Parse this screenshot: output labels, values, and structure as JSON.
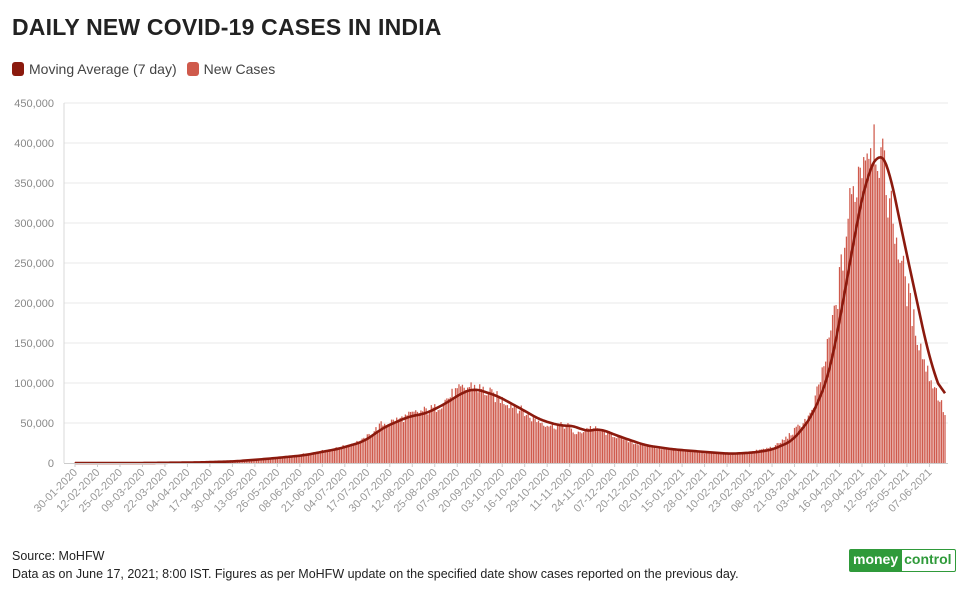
{
  "title": "DAILY NEW COVID-19 CASES IN INDIA",
  "legend": [
    {
      "label": "Moving Average (7 day)",
      "color": "#8b1a0e"
    },
    {
      "label": "New Cases",
      "color": "#cf5a4c"
    }
  ],
  "footer": {
    "source": "Source: MoHFW",
    "note": "Data as on June 17, 2021; 8:00 IST. Figures as per MoHFW update on the specified date show cases reported on the previous day."
  },
  "logo": {
    "part1": "money",
    "part2": "control"
  },
  "chart_data": {
    "type": "bar",
    "title": "DAILY NEW COVID-19 CASES IN INDIA",
    "xlabel": "",
    "ylabel": "",
    "ylim": [
      0,
      450000
    ],
    "yticks": [
      0,
      50000,
      100000,
      150000,
      200000,
      250000,
      300000,
      350000,
      400000,
      450000
    ],
    "ytick_labels": [
      "0",
      "50,000",
      "100,000",
      "150,000",
      "200,000",
      "250,000",
      "300,000",
      "350,000",
      "400,000",
      "450,000"
    ],
    "xtick_labels": [
      "30-01-2020",
      "12-02-2020",
      "25-02-2020",
      "09-03-2020",
      "22-03-2020",
      "04-04-2020",
      "17-04-2020",
      "30-04-2020",
      "13-05-2020",
      "26-05-2020",
      "08-06-2020",
      "21-06-2020",
      "04-07-2020",
      "17-07-2020",
      "30-07-2020",
      "12-08-2020",
      "25-08-2020",
      "07-09-2020",
      "20-09-2020",
      "03-10-2020",
      "16-10-2020",
      "29-10-2020",
      "11-11-2020",
      "24-11-2020",
      "07-12-2020",
      "20-12-2020",
      "02-01-2021",
      "15-01-2021",
      "28-01-2021",
      "10-02-2021",
      "23-02-2021",
      "08-03-2021",
      "21-03-2021",
      "03-04-2021",
      "16-04-2021",
      "29-04-2021",
      "12-05-2021",
      "25-05-2021",
      "07-06-2021"
    ],
    "date_range": [
      "2020-01-30",
      "2021-06-16"
    ],
    "grid": true,
    "legend_position": "top-left",
    "series": [
      {
        "name": "New Cases",
        "type": "bar",
        "color": "#cf5a4c",
        "keypoints": [
          [
            "2020-01-30",
            0
          ],
          [
            "2020-03-01",
            0
          ],
          [
            "2020-03-20",
            50
          ],
          [
            "2020-04-10",
            800
          ],
          [
            "2020-05-01",
            2000
          ],
          [
            "2020-05-20",
            5500
          ],
          [
            "2020-06-05",
            9500
          ],
          [
            "2020-06-20",
            14500
          ],
          [
            "2020-07-01",
            19000
          ],
          [
            "2020-07-15",
            29000
          ],
          [
            "2020-07-25",
            48000
          ],
          [
            "2020-08-05",
            55000
          ],
          [
            "2020-08-15",
            63000
          ],
          [
            "2020-08-25",
            68000
          ],
          [
            "2020-09-05",
            87000
          ],
          [
            "2020-09-16",
            97000
          ],
          [
            "2020-09-30",
            82000
          ],
          [
            "2020-10-10",
            72000
          ],
          [
            "2020-10-20",
            56000
          ],
          [
            "2020-11-01",
            46000
          ],
          [
            "2020-11-10",
            47000
          ],
          [
            "2020-11-15",
            35000
          ],
          [
            "2020-11-22",
            45000
          ],
          [
            "2020-12-05",
            36000
          ],
          [
            "2020-12-20",
            24000
          ],
          [
            "2021-01-05",
            18000
          ],
          [
            "2021-01-20",
            14500
          ],
          [
            "2021-02-05",
            11500
          ],
          [
            "2021-02-15",
            11000
          ],
          [
            "2021-02-28",
            15500
          ],
          [
            "2021-03-10",
            21000
          ],
          [
            "2021-03-20",
            38000
          ],
          [
            "2021-03-31",
            62000
          ],
          [
            "2021-04-08",
            130000
          ],
          [
            "2021-04-15",
            210000
          ],
          [
            "2021-04-22",
            320000
          ],
          [
            "2021-04-30",
            390000
          ],
          [
            "2021-05-06",
            412000
          ],
          [
            "2021-05-12",
            360000
          ],
          [
            "2021-05-20",
            270000
          ],
          [
            "2021-05-28",
            185000
          ],
          [
            "2021-06-05",
            120000
          ],
          [
            "2021-06-12",
            85000
          ],
          [
            "2021-06-16",
            62000
          ]
        ]
      },
      {
        "name": "Moving Average (7 day)",
        "type": "line",
        "color": "#8b1a0e",
        "keypoints": [
          [
            "2020-01-30",
            0
          ],
          [
            "2020-03-10",
            0
          ],
          [
            "2020-04-10",
            700
          ],
          [
            "2020-05-01",
            2000
          ],
          [
            "2020-05-20",
            5200
          ],
          [
            "2020-06-10",
            9500
          ],
          [
            "2020-07-01",
            18000
          ],
          [
            "2020-07-15",
            27000
          ],
          [
            "2020-07-27",
            45000
          ],
          [
            "2020-08-10",
            58000
          ],
          [
            "2020-08-20",
            62000
          ],
          [
            "2020-08-31",
            74000
          ],
          [
            "2020-09-10",
            88000
          ],
          [
            "2020-09-17",
            93000
          ],
          [
            "2020-09-30",
            84000
          ],
          [
            "2020-10-12",
            70000
          ],
          [
            "2020-10-25",
            54000
          ],
          [
            "2020-11-05",
            47000
          ],
          [
            "2020-11-15",
            46000
          ],
          [
            "2020-11-20",
            39000
          ],
          [
            "2020-11-28",
            43000
          ],
          [
            "2020-12-10",
            33000
          ],
          [
            "2020-12-25",
            22000
          ],
          [
            "2021-01-10",
            17000
          ],
          [
            "2021-01-30",
            13500
          ],
          [
            "2021-02-12",
            11500
          ],
          [
            "2021-02-25",
            13000
          ],
          [
            "2021-03-08",
            16500
          ],
          [
            "2021-03-20",
            28000
          ],
          [
            "2021-03-31",
            58000
          ],
          [
            "2021-04-10",
            110000
          ],
          [
            "2021-04-18",
            200000
          ],
          [
            "2021-04-26",
            300000
          ],
          [
            "2021-05-02",
            360000
          ],
          [
            "2021-05-09",
            390000
          ],
          [
            "2021-05-14",
            375000
          ],
          [
            "2021-05-22",
            290000
          ],
          [
            "2021-05-31",
            200000
          ],
          [
            "2021-06-07",
            130000
          ],
          [
            "2021-06-16",
            75000
          ]
        ]
      }
    ]
  }
}
